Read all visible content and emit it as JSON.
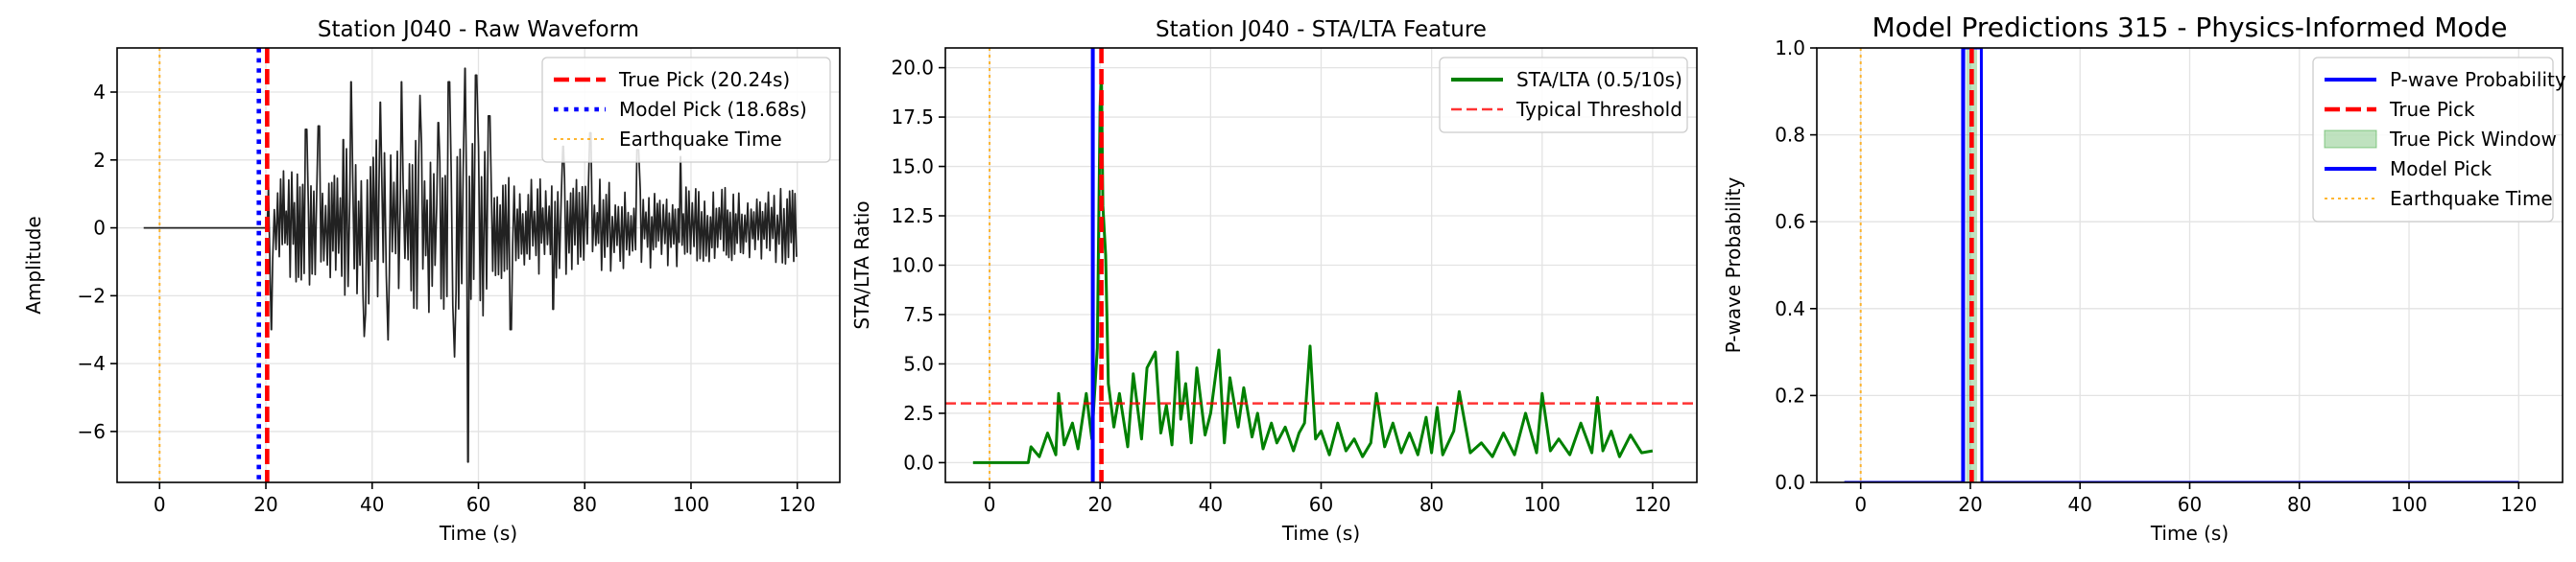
{
  "chart_data": [
    {
      "type": "line",
      "title": "Station J040 - Raw Waveform",
      "xlabel": "Time (s)",
      "ylabel": "Amplitude",
      "xlim": [
        -8,
        128
      ],
      "ylim": [
        -7.5,
        5.3
      ],
      "xticks": [
        0,
        20,
        40,
        60,
        80,
        100,
        120
      ],
      "xtick_labels": [
        "0",
        "20",
        "40",
        "60",
        "80",
        "100",
        "120"
      ],
      "yticks": [
        -6,
        -4,
        -2,
        0,
        2,
        4
      ],
      "ytick_labels": [
        "−6",
        "−4",
        "−2",
        "0",
        "2",
        "4"
      ],
      "grid": true,
      "legend": "top-right",
      "waveform": {
        "color": "#222222",
        "flat_start": -3,
        "onset": 20.24,
        "end": 120,
        "peaks": [
          {
            "t": 21.0,
            "v": -3.0
          },
          {
            "t": 27.5,
            "v": 2.9
          },
          {
            "t": 30.0,
            "v": 3.0
          },
          {
            "t": 34.6,
            "v": 2.6
          },
          {
            "t": 36.0,
            "v": 4.3
          },
          {
            "t": 38.5,
            "v": -3.2
          },
          {
            "t": 41.5,
            "v": 3.7
          },
          {
            "t": 43.0,
            "v": -3.3
          },
          {
            "t": 45.5,
            "v": 4.3
          },
          {
            "t": 49.0,
            "v": 3.9
          },
          {
            "t": 52.5,
            "v": 3.1
          },
          {
            "t": 54.5,
            "v": 4.3
          },
          {
            "t": 55.5,
            "v": -3.8
          },
          {
            "t": 57.5,
            "v": 4.7
          },
          {
            "t": 58.0,
            "v": -6.9
          },
          {
            "t": 59.5,
            "v": 4.5
          },
          {
            "t": 62.0,
            "v": 3.3
          },
          {
            "t": 66.0,
            "v": -3.0
          },
          {
            "t": 74.0,
            "v": -2.4
          },
          {
            "t": 76.0,
            "v": 2.4
          },
          {
            "t": 81.0,
            "v": 2.8
          },
          {
            "t": 90.0,
            "v": 2.3
          },
          {
            "t": 98.0,
            "v": 2.1
          }
        ]
      },
      "vlines": [
        {
          "name": "True Pick (20.24s)",
          "x": 20.24,
          "color": "#ff0000",
          "style": "dashed"
        },
        {
          "name": "Model Pick (18.68s)",
          "x": 18.68,
          "color": "#0000ff",
          "style": "dotted"
        },
        {
          "name": "Earthquake Time",
          "x": 0,
          "color": "#ffa500",
          "style": "dotted-thin"
        }
      ],
      "legend_entries": [
        {
          "label": "True Pick (20.24s)",
          "color": "#ff0000",
          "style": "dashed"
        },
        {
          "label": "Model Pick (18.68s)",
          "color": "#0000ff",
          "style": "dotted"
        },
        {
          "label": "Earthquake Time",
          "color": "#ffa500",
          "style": "dotted-thin"
        }
      ]
    },
    {
      "type": "line",
      "title": "Station J040 - STA/LTA Feature",
      "xlabel": "Time (s)",
      "ylabel": "STA/LTA Ratio",
      "xlim": [
        -8,
        128
      ],
      "ylim": [
        -1,
        21
      ],
      "xticks": [
        0,
        20,
        40,
        60,
        80,
        100,
        120
      ],
      "xtick_labels": [
        "0",
        "20",
        "40",
        "60",
        "80",
        "100",
        "120"
      ],
      "yticks": [
        0,
        2.5,
        5,
        7.5,
        10,
        12.5,
        15,
        17.5,
        20
      ],
      "ytick_labels": [
        "0.0",
        "2.5",
        "5.0",
        "7.5",
        "10.0",
        "12.5",
        "15.0",
        "17.5",
        "20.0"
      ],
      "grid": true,
      "legend": "top-right",
      "series": [
        {
          "name": "STA/LTA (0.5/10s)",
          "color": "#008000",
          "x": [
            -3,
            7,
            7.5,
            9,
            10.5,
            12,
            12.5,
            13.5,
            15,
            16,
            17.5,
            18.5,
            19.5,
            20.0,
            20.24,
            20.5,
            21,
            21.5,
            22.5,
            23.5,
            25,
            26,
            27.5,
            28.5,
            30,
            31,
            32,
            33,
            34,
            34.6,
            35.5,
            36.5,
            37.5,
            39,
            40,
            41.5,
            42.5,
            43.5,
            45,
            46,
            47.5,
            48.5,
            49.5,
            51,
            52,
            53.5,
            55,
            56,
            57,
            58,
            59,
            60,
            61.5,
            63,
            64.5,
            66,
            67.5,
            69,
            70,
            71.5,
            73,
            74.5,
            76,
            77.5,
            79,
            80,
            81,
            82,
            84,
            85,
            87,
            89,
            91,
            93,
            95,
            97,
            99,
            100,
            101.5,
            103,
            105,
            107,
            109,
            110,
            111,
            112.5,
            114,
            116,
            118,
            120
          ],
          "y": [
            0,
            0,
            0.8,
            0.3,
            1.5,
            0.4,
            3.5,
            0.9,
            2.0,
            0.7,
            3.5,
            1.2,
            5.8,
            18.0,
            19.8,
            13.0,
            10.5,
            4.0,
            1.8,
            3.5,
            0.8,
            4.5,
            1.2,
            4.8,
            5.6,
            1.5,
            2.9,
            0.9,
            5.6,
            2.2,
            4.0,
            1.0,
            4.8,
            1.4,
            2.5,
            5.7,
            1.0,
            4.3,
            1.8,
            3.8,
            1.3,
            2.5,
            0.7,
            2.0,
            1.0,
            1.8,
            0.6,
            1.5,
            2.0,
            5.9,
            1.2,
            1.6,
            0.4,
            2.0,
            0.6,
            1.2,
            0.3,
            1.0,
            3.5,
            0.8,
            2.0,
            0.5,
            1.5,
            0.4,
            2.3,
            0.5,
            2.8,
            0.4,
            1.6,
            3.6,
            0.5,
            1.0,
            0.3,
            1.5,
            0.4,
            2.5,
            0.5,
            3.5,
            0.6,
            1.2,
            0.4,
            2.0,
            0.5,
            3.3,
            0.6,
            1.6,
            0.3,
            1.4,
            0.5,
            0.6
          ]
        }
      ],
      "hlines": [
        {
          "name": "Typical Threshold",
          "y": 3.0,
          "color": "#ff0000",
          "style": "dashed-thin"
        }
      ],
      "vlines": [
        {
          "x": 18.68,
          "color": "#0000ff",
          "style": "solid"
        },
        {
          "x": 20.24,
          "color": "#ff0000",
          "style": "dashed"
        },
        {
          "x": 0,
          "color": "#ffa500",
          "style": "dotted-thin"
        }
      ],
      "legend_entries": [
        {
          "label": "STA/LTA (0.5/10s)",
          "color": "#008000",
          "style": "solid"
        },
        {
          "label": "Typical Threshold",
          "color": "#ff0000",
          "style": "dashed-thin"
        }
      ]
    },
    {
      "type": "line",
      "title": "Model Predictions 315 - Physics-Informed Mode",
      "xlabel": "Time (s)",
      "ylabel": "P-wave Probability",
      "xlim": [
        -8,
        128
      ],
      "ylim": [
        0,
        1.0
      ],
      "xticks": [
        0,
        20,
        40,
        60,
        80,
        100,
        120
      ],
      "xtick_labels": [
        "0",
        "20",
        "40",
        "60",
        "80",
        "100",
        "120"
      ],
      "yticks": [
        0,
        0.2,
        0.4,
        0.6,
        0.8,
        1.0
      ],
      "ytick_labels": [
        "0.0",
        "0.2",
        "0.4",
        "0.6",
        "0.8",
        "1.0"
      ],
      "grid": true,
      "legend": "top-right",
      "series": [
        {
          "name": "P-wave Probability",
          "color": "#0000ff",
          "x": [
            -3,
            18.6,
            18.68,
            18.7,
            18.8,
            22.0,
            22.1,
            120
          ],
          "y": [
            0,
            0,
            0.25,
            0.35,
            1.0,
            1.0,
            0,
            0
          ]
        }
      ],
      "spans": [
        {
          "name": "True Pick Window",
          "x0": 19.24,
          "x1": 21.24,
          "color": "#2ca02c",
          "alpha": 0.3
        }
      ],
      "vlines": [
        {
          "name": "True Pick",
          "x": 20.24,
          "color": "#ff0000",
          "style": "dashed"
        },
        {
          "name": "Model Pick",
          "x": 18.68,
          "color": "#0000ff",
          "style": "solid"
        },
        {
          "name": "Earthquake Time",
          "x": 0,
          "color": "#ffa500",
          "style": "dotted-thin"
        }
      ],
      "legend_entries": [
        {
          "label": "P-wave Probability",
          "color": "#0000ff",
          "style": "solid"
        },
        {
          "label": "True Pick",
          "color": "#ff0000",
          "style": "dashed"
        },
        {
          "label": "True Pick Window",
          "color": "#2ca02c",
          "style": "patch"
        },
        {
          "label": "Model Pick",
          "color": "#0000ff",
          "style": "solid"
        },
        {
          "label": "Earthquake Time",
          "color": "#ffa500",
          "style": "dotted-thin"
        }
      ]
    }
  ]
}
